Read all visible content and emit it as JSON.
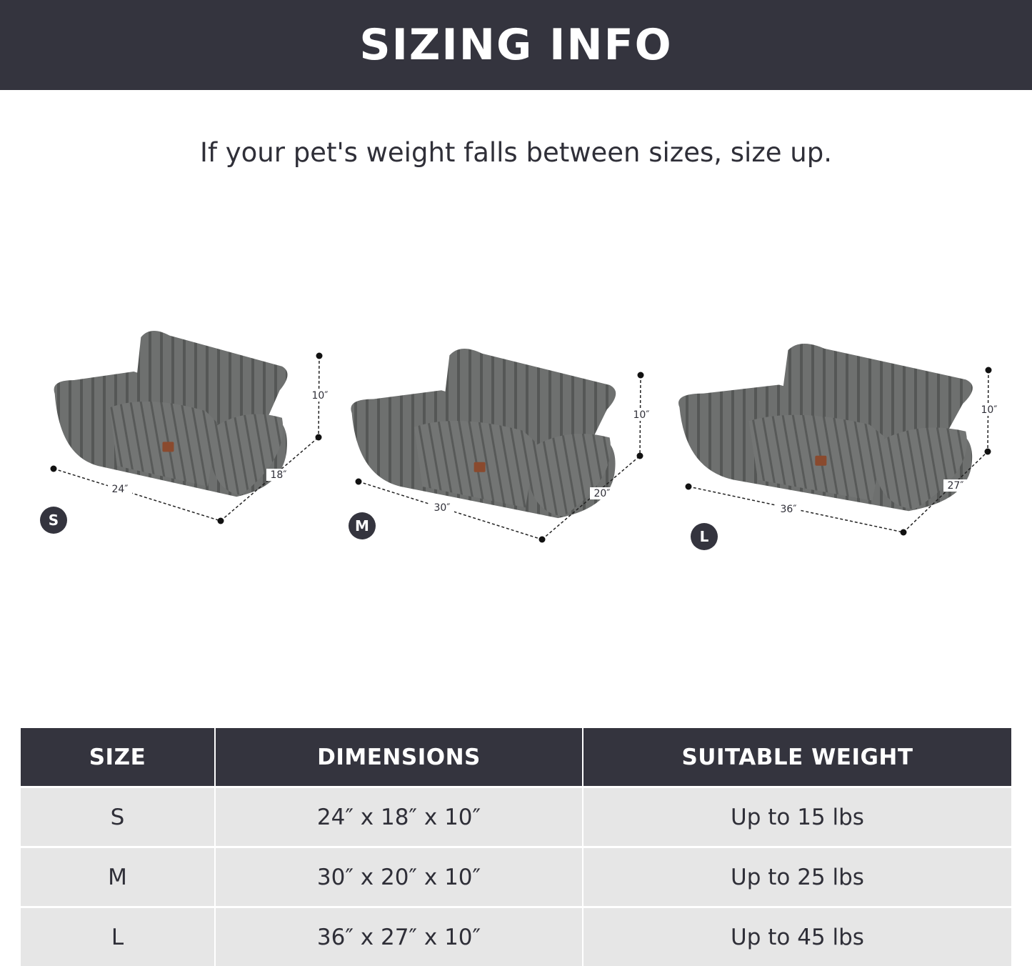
{
  "header": {
    "title": "SIZING INFO"
  },
  "subtitle": "If your pet's weight falls between sizes, size up.",
  "beds": [
    {
      "size": "S",
      "width": "24″",
      "depth": "18″",
      "height": "10″"
    },
    {
      "size": "M",
      "width": "30″",
      "depth": "20″",
      "height": "10″"
    },
    {
      "size": "L",
      "width": "36″",
      "depth": "27″",
      "height": "10″"
    }
  ],
  "table": {
    "headers": [
      "SIZE",
      "DIMENSIONS",
      "SUITABLE WEIGHT"
    ],
    "rows": [
      [
        "S",
        "24″ x 18″ x 10″",
        "Up to 15 lbs"
      ],
      [
        "M",
        "30″ x 20″ x 10″",
        "Up to 25 lbs"
      ],
      [
        "L",
        "36″ x 27″ x 10″",
        "Up to 45 lbs"
      ]
    ]
  },
  "colors": {
    "header_bg": "#34343e",
    "row_bg": "#e6e6e6",
    "bed_fabric": "#6b6d6c",
    "label_patch": "#8a4a2e"
  }
}
